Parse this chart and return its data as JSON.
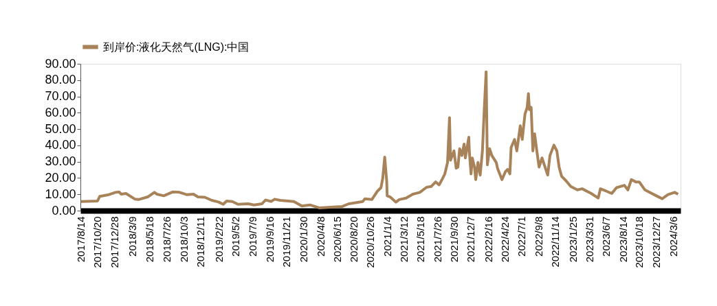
{
  "chart_data": {
    "type": "line",
    "legend": "top",
    "grid": false,
    "marker": "none",
    "line_style": "solid",
    "x": [
      "2017-08-14",
      "2017-10-20",
      "2017-10-29",
      "2017-12-05",
      "2018-01-01",
      "2018-01-15",
      "2018-01-24",
      "2018-02-12",
      "2018-03-21",
      "2018-04-04",
      "2018-05-11",
      "2018-06-07",
      "2018-06-17",
      "2018-07-15",
      "2018-08-21",
      "2018-09-17",
      "2018-10-15",
      "2018-11-12",
      "2018-11-30",
      "2018-12-28",
      "2019-01-25",
      "2019-02-21",
      "2019-03-12",
      "2019-03-26",
      "2019-04-18",
      "2019-05-11",
      "2019-06-21",
      "2019-07-15",
      "2019-08-16",
      "2019-08-30",
      "2019-09-22",
      "2019-10-06",
      "2019-10-29",
      "2019-12-23",
      "2020-01-24",
      "2020-02-26",
      "2020-04-03",
      "2020-05-19",
      "2020-07-04",
      "2020-08-01",
      "2020-09-26",
      "2020-10-05",
      "2020-11-02",
      "2020-11-25",
      "2020-12-09",
      "2020-12-16",
      "2020-12-24",
      "2021-01-01",
      "2021-01-03",
      "2021-01-15",
      "2021-02-07",
      "2021-02-21",
      "2021-03-20",
      "2021-04-17",
      "2021-05-15",
      "2021-06-11",
      "2021-06-30",
      "2021-07-18",
      "2021-08-01",
      "2021-08-15",
      "2021-08-24",
      "2021-09-04",
      "2021-09-12",
      "2021-09-16",
      "2021-09-30",
      "2021-10-09",
      "2021-10-16",
      "2021-10-23",
      "2021-11-01",
      "2021-11-10",
      "2021-11-15",
      "2021-11-29",
      "2021-12-01",
      "2021-12-08",
      "2021-12-13",
      "2021-12-22",
      "2021-12-27",
      "2022-01-05",
      "2022-01-14",
      "2022-01-23",
      "2022-01-30",
      "2022-02-07",
      "2022-02-12",
      "2022-02-21",
      "2022-03-02",
      "2022-03-20",
      "2022-03-25",
      "2022-04-12",
      "2022-04-26",
      "2022-05-05",
      "2022-05-14",
      "2022-05-19",
      "2022-06-02",
      "2022-06-11",
      "2022-06-25",
      "2022-07-03",
      "2022-07-14",
      "2022-07-23",
      "2022-07-28",
      "2022-08-01",
      "2022-08-08",
      "2022-08-15",
      "2022-08-22",
      "2022-08-31",
      "2022-09-09",
      "2022-09-21",
      "2022-09-30",
      "2022-10-14",
      "2022-10-23",
      "2022-11-08",
      "2022-11-20",
      "2022-11-29",
      "2022-12-09",
      "2022-12-27",
      "2023-01-15",
      "2023-02-11",
      "2023-03-02",
      "2023-04-08",
      "2023-05-06",
      "2023-05-15",
      "2023-06-07",
      "2023-06-30",
      "2023-07-19",
      "2023-08-20",
      "2023-09-03",
      "2023-09-17",
      "2023-10-05",
      "2023-10-19",
      "2023-11-11",
      "2023-12-23",
      "2024-01-20",
      "2024-02-12",
      "2024-03-10",
      "2024-03-24"
    ],
    "series": [
      {
        "name": "到岸价:液化天然气(LNG):中国",
        "color": "#a8835a",
        "values": [
          5.6,
          5.9,
          8.7,
          9.8,
          11.2,
          11.5,
          10.1,
          10.5,
          7.0,
          6.8,
          8.4,
          11.2,
          10.1,
          9.1,
          11.5,
          11.2,
          9.8,
          10.1,
          8.4,
          8.2,
          6.3,
          5.3,
          3.9,
          5.9,
          5.6,
          3.9,
          4.2,
          3.5,
          4.2,
          6.5,
          5.6,
          7.0,
          6.3,
          5.6,
          2.8,
          3.5,
          1.7,
          2.1,
          2.5,
          4.2,
          5.6,
          7.3,
          6.8,
          12.0,
          14.1,
          19.7,
          32.8,
          18.3,
          9.1,
          8.4,
          5.2,
          6.8,
          7.7,
          10.1,
          11.2,
          14.3,
          14.8,
          17.6,
          15.8,
          19.7,
          22.5,
          29.5,
          57.0,
          30.9,
          36.6,
          26.0,
          26.7,
          38.0,
          33.8,
          40.8,
          32.3,
          45.0,
          36.6,
          22.5,
          32.3,
          26.7,
          19.0,
          29.5,
          21.8,
          36.6,
          60.5,
          85.1,
          28.1,
          38.0,
          33.8,
          29.5,
          26.0,
          19.0,
          23.9,
          25.3,
          22.5,
          38.7,
          43.6,
          36.6,
          52.0,
          43.6,
          59.1,
          63.3,
          71.7,
          61.9,
          63.3,
          36.6,
          47.1,
          36.6,
          26.7,
          32.3,
          28.1,
          21.8,
          33.8,
          40.1,
          36.6,
          26.7,
          21.1,
          18.3,
          14.8,
          12.7,
          13.4,
          10.5,
          7.7,
          13.4,
          12.0,
          10.5,
          14.1,
          15.5,
          12.7,
          19.0,
          17.6,
          17.6,
          12.7,
          9.4,
          7.3,
          9.8,
          11.2,
          10.1
        ]
      }
    ],
    "xlim": [
      "2017-08-12",
      "2024-04-03"
    ],
    "xticks": [
      {
        "value": "2017-08-14",
        "label": "2017/8/14"
      },
      {
        "value": "2017-10-20",
        "label": "2017/10/20"
      },
      {
        "value": "2017-12-28",
        "label": "2017/12/28"
      },
      {
        "value": "2018-03-09",
        "label": "2018/3/9"
      },
      {
        "value": "2018-05-18",
        "label": "2018/5/18"
      },
      {
        "value": "2018-07-26",
        "label": "2018/7/26"
      },
      {
        "value": "2018-10-03",
        "label": "2018/10/3"
      },
      {
        "value": "2018-12-11",
        "label": "2018/12/11"
      },
      {
        "value": "2019-02-22",
        "label": "2019/2/22"
      },
      {
        "value": "2019-05-02",
        "label": "2019/5/2"
      },
      {
        "value": "2019-07-09",
        "label": "2019/7/9"
      },
      {
        "value": "2019-09-16",
        "label": "2019/9/16"
      },
      {
        "value": "2019-11-21",
        "label": "2019/11/21"
      },
      {
        "value": "2020-01-30",
        "label": "2020/1/30"
      },
      {
        "value": "2020-04-08",
        "label": "2020/4/8"
      },
      {
        "value": "2020-06-15",
        "label": "2020/6/15"
      },
      {
        "value": "2020-08-20",
        "label": "2020/8/20"
      },
      {
        "value": "2020-10-26",
        "label": "2020/10/26"
      },
      {
        "value": "2021-01-04",
        "label": "2021/1/4"
      },
      {
        "value": "2021-03-12",
        "label": "2021/3/12"
      },
      {
        "value": "2021-05-18",
        "label": "2021/5/18"
      },
      {
        "value": "2021-07-26",
        "label": "2021/7/26"
      },
      {
        "value": "2021-09-30",
        "label": "2021/9/30"
      },
      {
        "value": "2021-12-07",
        "label": "2021/12/7"
      },
      {
        "value": "2022-02-16",
        "label": "2022/2/16"
      },
      {
        "value": "2022-04-24",
        "label": "2022/4/24"
      },
      {
        "value": "2022-07-01",
        "label": "2022/7/1"
      },
      {
        "value": "2022-09-08",
        "label": "2022/9/8"
      },
      {
        "value": "2022-11-14",
        "label": "2022/11/14"
      },
      {
        "value": "2023-01-25",
        "label": "2023/1/25"
      },
      {
        "value": "2023-03-31",
        "label": "2023/3/31"
      },
      {
        "value": "2023-06-07",
        "label": "2023/6/7"
      },
      {
        "value": "2023-08-14",
        "label": "2023/8/14"
      },
      {
        "value": "2023-10-18",
        "label": "2023/10/18"
      },
      {
        "value": "2023-12-27",
        "label": "2023/12/27"
      },
      {
        "value": "2024-03-06",
        "label": "2024/3/6"
      }
    ],
    "ylim": [
      0,
      90
    ],
    "yticks": [
      {
        "value": 0,
        "label": "0.00"
      },
      {
        "value": 10,
        "label": "10.00"
      },
      {
        "value": 20,
        "label": "20.00"
      },
      {
        "value": 30,
        "label": "30.00"
      },
      {
        "value": 40,
        "label": "40.00"
      },
      {
        "value": 50,
        "label": "50.00"
      },
      {
        "value": 60,
        "label": "60.00"
      },
      {
        "value": 70,
        "label": "70.00"
      },
      {
        "value": 80,
        "label": "80.00"
      },
      {
        "value": 90,
        "label": "90.00"
      }
    ]
  }
}
